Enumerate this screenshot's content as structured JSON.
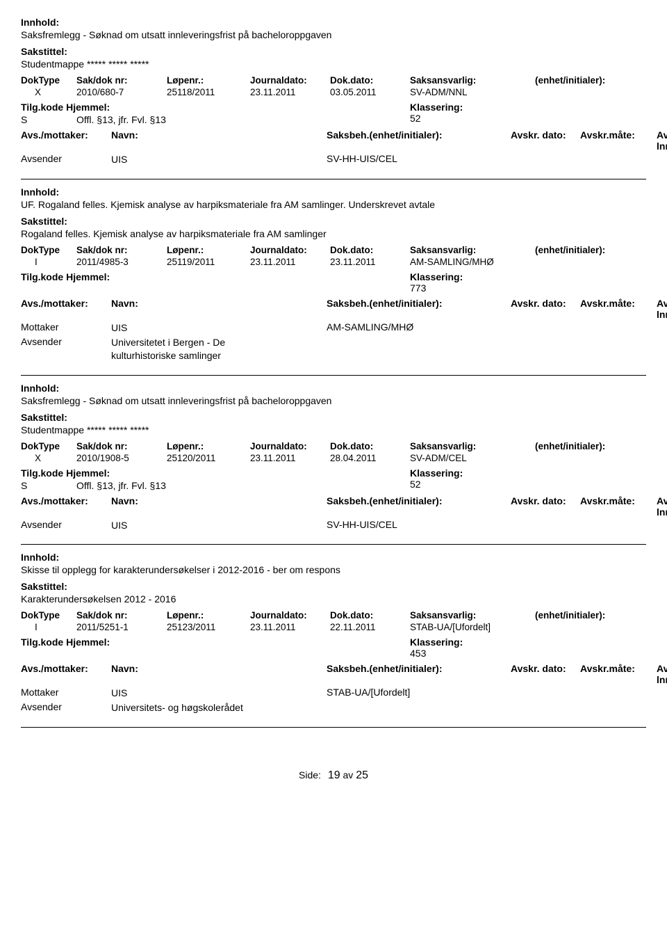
{
  "labels": {
    "innhold": "Innhold:",
    "sakstittel": "Sakstittel:",
    "doktype": "DokType",
    "sakdok": "Sak/dok nr:",
    "lopenr": "Løpenr.:",
    "journaldato": "Journaldato:",
    "dokdato": "Dok.dato:",
    "saksansvarlig": "Saksansvarlig:",
    "enhet": "(enhet/initialer):",
    "tilgkode": "Tilg.kode",
    "hjemmel": "Hjemmel:",
    "klassering": "Klassering:",
    "avsmottaker": "Avs./mottaker:",
    "navn": "Navn:",
    "saksbeh": "Saksbeh.(enhet/initialer):",
    "avskrdato": "Avskr. dato:",
    "avskrmate": "Avskr.måte:",
    "avskrivlnr": "Avskriv lnr.:",
    "side": "Side:",
    "av": "av"
  },
  "roles": {
    "avsender": "Avsender",
    "mottaker": "Mottaker"
  },
  "records": [
    {
      "innhold": "Saksfremlegg - Søknad om utsatt innleveringsfrist på bacheloroppgaven",
      "sakstittel": "Studentmappe ***** ***** *****",
      "doktype": "X",
      "sakdok": "2010/680-7",
      "lopenr": "25118/2011",
      "journaldato": "23.11.2011",
      "dokdato": "03.05.2011",
      "saksansvarlig": "SV-ADM/NNL",
      "tilgcode": "S",
      "hjemmel": "Offl. §13, jfr. Fvl. §13",
      "klassering": "52",
      "parties": [
        {
          "role": "Avsender",
          "name": "UIS",
          "saksbeh": "SV-HH-UIS/CEL"
        }
      ]
    },
    {
      "innhold": "UF. Rogaland felles. Kjemisk analyse av harpiksmateriale fra AM samlinger. Underskrevet avtale",
      "sakstittel": "Rogaland felles. Kjemisk analyse av harpiksmateriale fra AM samlinger",
      "doktype": "I",
      "sakdok": "2011/4985-3",
      "lopenr": "25119/2011",
      "journaldato": "23.11.2011",
      "dokdato": "23.11.2011",
      "saksansvarlig": "AM-SAMLING/MHØ",
      "tilgcode": "",
      "hjemmel": "",
      "klassering": "773",
      "parties": [
        {
          "role": "Mottaker",
          "name": "UIS",
          "saksbeh": "AM-SAMLING/MHØ"
        },
        {
          "role": "Avsender",
          "name": "Universitetet i Bergen - De\nkulturhistoriske samlinger",
          "saksbeh": ""
        }
      ]
    },
    {
      "innhold": "Saksfremlegg - Søknad om utsatt innleveringsfrist på bacheloroppgaven",
      "sakstittel": "Studentmappe ***** ***** *****",
      "doktype": "X",
      "sakdok": "2010/1908-5",
      "lopenr": "25120/2011",
      "journaldato": "23.11.2011",
      "dokdato": "28.04.2011",
      "saksansvarlig": "SV-ADM/CEL",
      "tilgcode": "S",
      "hjemmel": "Offl. §13, jfr. Fvl. §13",
      "klassering": "52",
      "parties": [
        {
          "role": "Avsender",
          "name": "UIS",
          "saksbeh": "SV-HH-UIS/CEL"
        }
      ]
    },
    {
      "innhold": "Skisse til opplegg for karakterundersøkelser i 2012-2016 - ber om respons",
      "sakstittel": "Karakterundersøkelsen 2012 - 2016",
      "doktype": "I",
      "sakdok": "2011/5251-1",
      "lopenr": "25123/2011",
      "journaldato": "23.11.2011",
      "dokdato": "22.11.2011",
      "saksansvarlig": "STAB-UA/[Ufordelt]",
      "tilgcode": "",
      "hjemmel": "",
      "klassering": "453",
      "parties": [
        {
          "role": "Mottaker",
          "name": "UIS",
          "saksbeh": "STAB-UA/[Ufordelt]"
        },
        {
          "role": "Avsender",
          "name": "Universitets- og høgskolerådet",
          "saksbeh": ""
        }
      ]
    }
  ],
  "page": {
    "current": "19",
    "total": "25"
  }
}
